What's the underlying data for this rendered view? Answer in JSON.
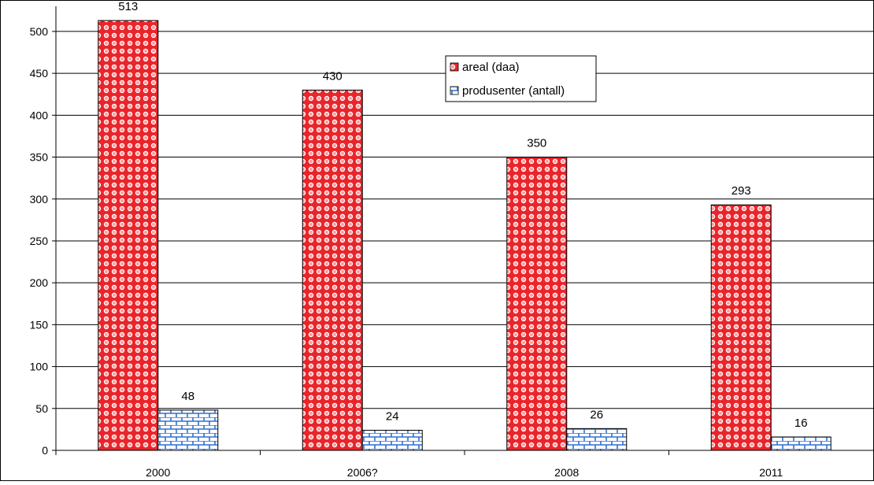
{
  "chart_data": {
    "type": "bar",
    "categories": [
      "2000",
      "2006?",
      "2008",
      "2011"
    ],
    "series": [
      {
        "name": "areal (daa)",
        "values": [
          513,
          430,
          350,
          293
        ],
        "color": "#e8252b",
        "pattern": "dots"
      },
      {
        "name": "produsenter (antall)",
        "values": [
          48,
          24,
          26,
          16
        ],
        "color": "#2f6fd0",
        "pattern": "bricks"
      }
    ],
    "yticks": [
      0,
      50,
      100,
      150,
      200,
      250,
      300,
      350,
      400,
      450,
      500
    ],
    "ylim": [
      0,
      530
    ],
    "grid": true,
    "legend": "top-center",
    "data_labels": true
  }
}
